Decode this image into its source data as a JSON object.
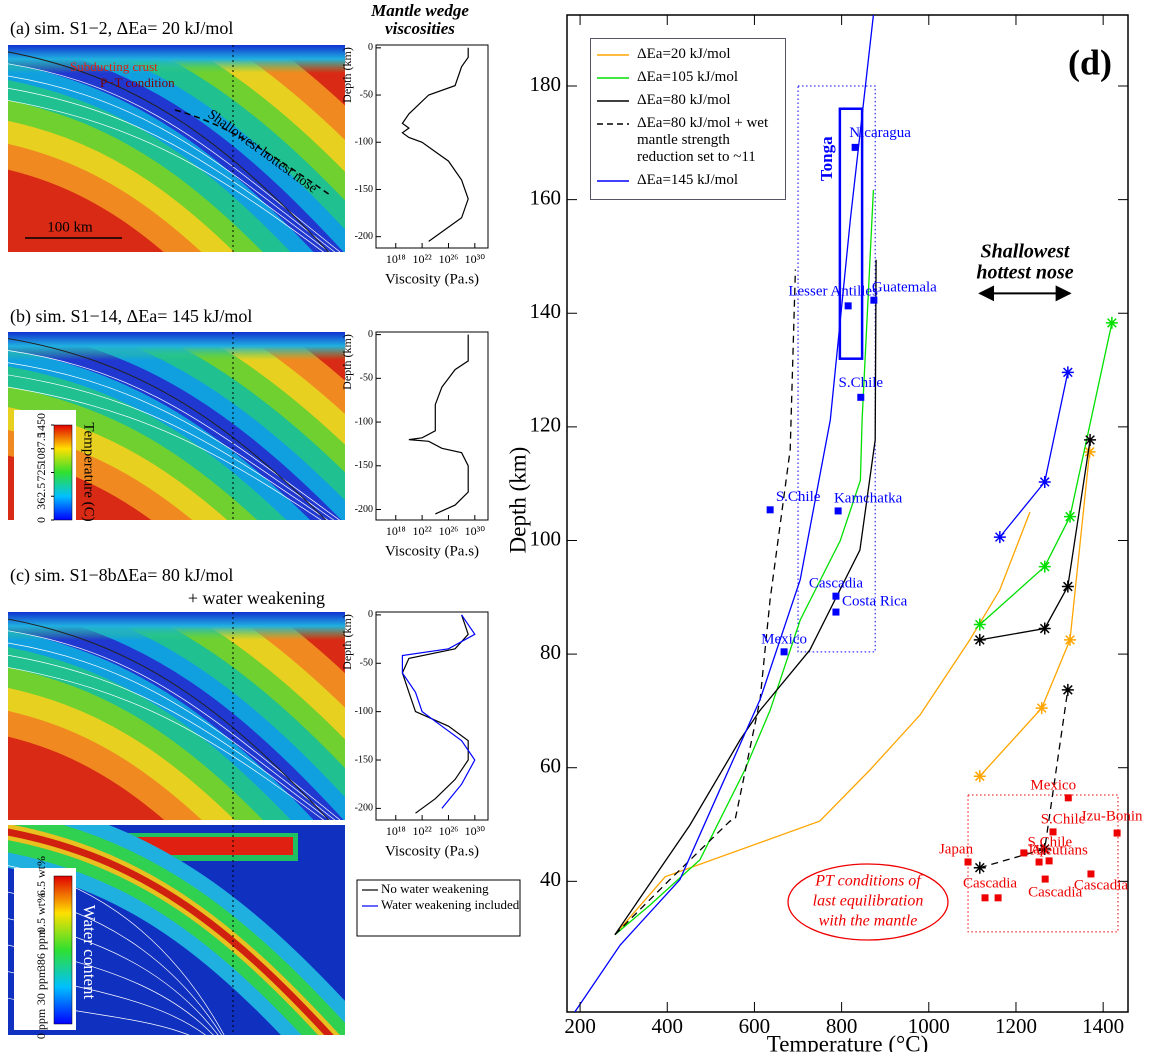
{
  "chart_data": [
    {
      "type": "line",
      "xlabel": "Temperature (°C)",
      "ylabel": "Depth (km)",
      "xlim": [
        170,
        1457
      ],
      "xticks": [
        200,
        400,
        600,
        800,
        1000,
        1200,
        1400
      ],
      "ylim": [
        17,
        192.5
      ],
      "yticks": [
        40,
        60,
        80,
        100,
        120,
        140,
        160,
        180
      ],
      "series": [
        {
          "name": "ΔEa=20 kJ/mol",
          "color": "#ffa500",
          "x": [
            280,
            395,
            750,
            865,
            980,
            1094,
            1163,
            1232
          ],
          "y": [
            30.6,
            40.8,
            50.6,
            59.6,
            69.3,
            82.5,
            91.3,
            105
          ]
        },
        {
          "name": "ΔEa=105 kJ/mol",
          "color": "#00e000",
          "x": [
            280,
            360,
            475,
            578,
            636,
            705,
            797,
            843,
            847,
            873
          ],
          "y": [
            30.6,
            35.8,
            43.8,
            59.6,
            70.1,
            86,
            100,
            110.6,
            121.2,
            161.7
          ]
        },
        {
          "name": "ΔEa=80 kJ/mol",
          "color": "#000000",
          "x": [
            280,
            452,
            567,
            613,
            727,
            842,
            877,
            879
          ],
          "y": [
            30.6,
            49.9,
            64.9,
            70.1,
            80.7,
            98.3,
            117.7,
            149.4
          ]
        },
        {
          "name": "ΔEa=80 kJ/mol + wet mantle strength reduction set to ~11",
          "color": "#000000",
          "dash": true,
          "x": [
            280,
            406,
            544,
            556,
            613,
            636,
            682,
            694
          ],
          "y": [
            30.6,
            40.3,
            50.6,
            51,
            72,
            89.6,
            116,
            147.7
          ]
        },
        {
          "name": "ΔEa=145 kJ/mol",
          "color": "#0000ff",
          "x": [
            188,
            292,
            429,
            521,
            613,
            705,
            774,
            820,
            873
          ],
          "y": [
            17,
            28.8,
            40.3,
            56.2,
            72,
            93.1,
            121.2,
            156.4,
            192.5
          ]
        },
        {
          "color": "#ffa500",
          "marker": "star",
          "x": [
            1117,
            1259,
            1324,
            1369
          ],
          "y": [
            58.5,
            70.5,
            82.5,
            115.6
          ]
        },
        {
          "color": "#00e000",
          "marker": "star",
          "x": [
            1117,
            1266,
            1324,
            1420
          ],
          "y": [
            85.2,
            95.4,
            104.2,
            138.3
          ]
        },
        {
          "color": "#000000",
          "marker": "star",
          "x": [
            1117,
            1266,
            1319,
            1370
          ],
          "y": [
            82.5,
            84.5,
            91.9,
            117.7
          ]
        },
        {
          "color": "#000000",
          "marker": "star",
          "dash": true,
          "x": [
            1117,
            1266,
            1319
          ],
          "y": [
            42.4,
            45.7,
            73.7
          ]
        },
        {
          "color": "#0000ff",
          "marker": "star",
          "x": [
            1163,
            1266,
            1319
          ],
          "y": [
            100.6,
            110.3,
            129.6
          ]
        }
      ],
      "points": [
        {
          "color": "#0000ff",
          "x": [
            831,
            815,
            874,
            844,
            636,
            792,
            787,
            787,
            668
          ],
          "y": [
            169.2,
            141.3,
            142.3,
            125.2,
            105.4,
            105.2,
            90.2,
            87.4,
            80.4
          ],
          "labels": [
            "Nicaragua",
            "Lesser Antilles",
            "Guatemala",
            "S.Chile",
            "S.Chile",
            "Kamchatka",
            "Cascadia",
            "Costa Rica",
            "Mexico"
          ]
        },
        {
          "color": "#ee0000",
          "x": [
            1320,
            1432,
            1285,
            1218,
            1090,
            1253,
            1276,
            1372,
            1267,
            1129,
            1159
          ],
          "y": [
            54.7,
            48.5,
            48.7,
            45,
            43.4,
            43.4,
            43.6,
            41.3,
            40.4,
            37.1,
            37.1
          ],
          "labels": [
            "Mexico",
            "Izu-Bonin",
            "S.Chile",
            "S.Chile",
            "Japan",
            "Jap.",
            "Aleutians",
            "Cascadia",
            "Cascadia",
            "Cascadia",
            null
          ]
        }
      ],
      "regions": [
        {
          "x": [
            700,
            877
          ],
          "y": [
            80.4,
            180
          ],
          "color": "#0000ff",
          "style": "dotted"
        },
        {
          "x": [
            1090,
            1434
          ],
          "y": [
            31.1,
            55.2
          ],
          "color": "#ee0000",
          "style": "dotted"
        },
        {
          "x": [
            796,
            847
          ],
          "y": [
            132,
            176
          ],
          "color": "#0000ff",
          "style": "solid",
          "label": "Tonga"
        }
      ],
      "annotations": {
        "panel_label": "(d)",
        "nose_label": [
          "Shallowest",
          "hottest nose"
        ],
        "nose_arrow": {
          "x": [
            1117,
            1324
          ],
          "y": 143.5
        },
        "pt_label": [
          "PT conditions of",
          "last  equilibration",
          "with the mantle"
        ]
      }
    },
    {
      "type": "line",
      "title": [
        "Mantle wedge",
        "viscosities"
      ],
      "xlabel": "Viscosity (Pa.s)",
      "ylabel": "Depth (km)",
      "xscale": "log",
      "xlim": [
        1000000000000000.0,
        1e+32
      ],
      "xticks": [
        {
          "value": 1e+18,
          "label": "10¹⁸"
        },
        {
          "value": 1e+22,
          "label": "10²²"
        },
        {
          "value": 1e+26,
          "label": "10²⁶"
        },
        {
          "value": 1e+30,
          "label": "10³⁰"
        }
      ],
      "ylim": [
        -212,
        3
      ],
      "yticks": [
        0,
        -50,
        -100,
        -150,
        -200
      ],
      "series": [
        {
          "color": "#000000",
          "x": [
            1e+29,
            1e+29,
            1e+28,
            1e+27,
            1e+23,
            1e+20,
            1e+19,
            1e+20,
            1e+19,
            1e+20,
            1e+22,
            1e+24,
            1e+26,
            1e+28,
            1e+29,
            1e+28,
            1e+25,
            1e+23
          ],
          "y": [
            0,
            -10,
            -20,
            -40,
            -50,
            -70,
            -80,
            -85,
            -90,
            -95,
            -100,
            -110,
            -120,
            -140,
            -160,
            -180,
            -195,
            -205
          ]
        }
      ]
    },
    {
      "type": "line",
      "xlabel": "Viscosity (Pa.s)",
      "ylabel": "Depth (km)",
      "xscale": "log",
      "xlim": [
        1000000000000000.0,
        1e+32
      ],
      "xticks": [
        {
          "value": 1e+18,
          "label": "10¹⁸"
        },
        {
          "value": 1e+22,
          "label": "10²²"
        },
        {
          "value": 1e+26,
          "label": "10²⁶"
        },
        {
          "value": 1e+30,
          "label": "10³⁰"
        }
      ],
      "ylim": [
        -212,
        3
      ],
      "yticks": [
        0,
        -50,
        -100,
        -150,
        -200
      ],
      "series": [
        {
          "color": "#000000",
          "x": [
            1e+29,
            1e+29,
            1e+29,
            1e+27,
            1e+25,
            1e+24,
            1e+24,
            1e+22,
            1e+20,
            1e+23,
            1e+25,
            1e+28,
            1e+29,
            1e+29,
            1e+27,
            1e+24
          ],
          "y": [
            0,
            -10,
            -30,
            -40,
            -60,
            -80,
            -110,
            -118,
            -120,
            -122,
            -130,
            -135,
            -150,
            -180,
            -195,
            -205
          ]
        }
      ]
    },
    {
      "type": "line",
      "xlabel": "Viscosity (Pa.s)",
      "ylabel": "Depth (km)",
      "xscale": "log",
      "xlim": [
        1000000000000000.0,
        1e+32
      ],
      "xticks": [
        {
          "value": 1e+18,
          "label": "10¹⁸"
        },
        {
          "value": 1e+22,
          "label": "10²²"
        },
        {
          "value": 1e+26,
          "label": "10²⁶"
        },
        {
          "value": 1e+30,
          "label": "10³⁰"
        }
      ],
      "ylim": [
        -212,
        3
      ],
      "yticks": [
        0,
        -50,
        -100,
        -150,
        -200
      ],
      "series": [
        {
          "name": "No water weakening",
          "color": "#000000",
          "x": [
            1e+28,
            1e+29,
            1e+27,
            1e+20,
            1e+19,
            1e+20,
            1e+21,
            1e+26,
            1e+29,
            1e+29,
            1e+27,
            1e+24,
            1e+21
          ],
          "y": [
            0,
            -20,
            -35,
            -45,
            -60,
            -80,
            -100,
            -115,
            -130,
            -150,
            -170,
            -190,
            -205
          ]
        },
        {
          "name": "Water weakening included",
          "color": "#0000ff",
          "x": [
            1e+28,
            1e+30,
            1e+26,
            1e+19,
            1e+19,
            1e+21,
            1e+22,
            1e+25,
            1e+28,
            1e+30,
            1e+28,
            1e+25
          ],
          "y": [
            0,
            -20,
            -35,
            -42,
            -60,
            -80,
            -100,
            -115,
            -130,
            -150,
            -175,
            -200
          ]
        }
      ]
    }
  ],
  "maps": [
    {
      "title": "(a) sim. S1−2,  ΔEa= 20 kJ/mol",
      "annotations": [
        "Subducting crust",
        "P−T condition",
        "Shallowest hottest nose"
      ],
      "scale_bar": "100 km"
    },
    {
      "title": "(b) sim. S1−14,  ΔEa= 145 kJ/mol",
      "colorbar": {
        "label": "Temperature (C)",
        "ticks": [
          0,
          362.5,
          725,
          1087.5,
          1450
        ]
      }
    },
    {
      "title": "(c) sim. S1−8bΔEa= 80 kJ/mol",
      "subtitle": "+ water weakening"
    },
    {
      "colorbar": {
        "label": "Water content",
        "ticks": [
          "0 ppm",
          "30 ppm",
          "386 ppm",
          "0.5 wt%",
          "6.5 wt%"
        ]
      }
    }
  ]
}
